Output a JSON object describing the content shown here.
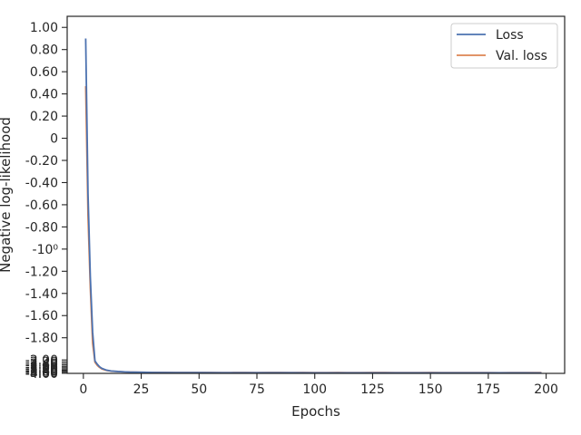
{
  "chart_data": {
    "type": "line",
    "xlabel": "Epochs",
    "ylabel": "Negative log-likelihood",
    "xlim": [
      -7,
      208
    ],
    "x_ticks": [
      0,
      25,
      50,
      75,
      100,
      125,
      150,
      175,
      200
    ],
    "y_scale": "symlog",
    "ylim": [
      -4.02,
      1.1
    ],
    "y_ticks": [
      {
        "value": 1.0,
        "label": "1.00"
      },
      {
        "value": 0.8,
        "label": "0.80"
      },
      {
        "value": 0.6,
        "label": "0.60"
      },
      {
        "value": 0.4,
        "label": "0.40"
      },
      {
        "value": 0.2,
        "label": "0.20"
      },
      {
        "value": 0.0,
        "label": "0"
      },
      {
        "value": -0.2,
        "label": "-0.20"
      },
      {
        "value": -0.4,
        "label": "-0.40"
      },
      {
        "value": -0.6,
        "label": "-0.60"
      },
      {
        "value": -0.8,
        "label": "-0.80"
      },
      {
        "value": -1.0,
        "label": "-10⁰"
      },
      {
        "value": -1.2,
        "label": "-1.20"
      },
      {
        "value": -1.4,
        "label": "-1.40"
      },
      {
        "value": -1.6,
        "label": "-1.60"
      },
      {
        "value": -1.8,
        "label": "-1.80"
      },
      {
        "value": -2.0,
        "label": "-2.00"
      },
      {
        "value": -2.2,
        "label": "-2.20"
      },
      {
        "value": -2.4,
        "label": "-2.40"
      },
      {
        "value": -2.6,
        "label": "-2.60"
      },
      {
        "value": -2.8,
        "label": "-2.80"
      },
      {
        "value": -3.0,
        "label": "-3.00"
      },
      {
        "value": -3.2,
        "label": "-3.20"
      },
      {
        "value": -3.4,
        "label": "-3.40"
      },
      {
        "value": -3.6,
        "label": "-3.60"
      },
      {
        "value": -3.8,
        "label": "-3.80"
      },
      {
        "value": -4.0,
        "label": "-4.00"
      }
    ],
    "grid": false,
    "legend_position": "top-right",
    "series": [
      {
        "name": "Loss",
        "color": "#4c72b0",
        "x": [
          1,
          2,
          3,
          4,
          5,
          6,
          7,
          8,
          10,
          12,
          15,
          18,
          20,
          25,
          30,
          40,
          50,
          60,
          70,
          80,
          90,
          100,
          110,
          120,
          130,
          140,
          150,
          160,
          170,
          180,
          190,
          198
        ],
        "values": [
          0.9,
          -0.5,
          -1.25,
          -1.75,
          -2.1,
          -2.5,
          -2.85,
          -3.1,
          -3.4,
          -3.55,
          -3.65,
          -3.72,
          -3.76,
          -3.8,
          -3.83,
          -3.86,
          -3.87,
          -3.88,
          -3.88,
          -3.89,
          -3.89,
          -3.9,
          -3.9,
          -3.9,
          -3.91,
          -3.91,
          -3.91,
          -3.92,
          -3.92,
          -3.92,
          -3.92,
          -3.93
        ]
      },
      {
        "name": "Val. loss",
        "color": "#dd8452",
        "x": [
          1,
          2,
          3,
          4,
          5,
          6,
          7,
          8,
          10,
          12,
          15,
          18,
          20,
          25,
          30,
          35,
          40,
          45,
          50,
          55,
          60,
          65,
          70,
          75,
          80,
          85,
          90,
          95,
          100,
          105,
          110,
          115,
          120,
          125,
          130,
          135,
          140,
          145,
          150,
          155,
          160,
          165,
          170,
          175,
          180,
          185,
          190,
          195,
          198
        ],
        "values": [
          0.47,
          -0.7,
          -1.35,
          -1.85,
          -2.25,
          -2.65,
          -2.95,
          -3.2,
          -3.45,
          -3.58,
          -3.66,
          -3.73,
          -3.76,
          -3.79,
          -3.82,
          -3.81,
          -3.84,
          -3.83,
          -3.85,
          -3.84,
          -3.86,
          -3.85,
          -3.84,
          -3.86,
          -3.85,
          -3.84,
          -3.86,
          -3.85,
          -3.86,
          -3.87,
          -3.85,
          -3.86,
          -3.87,
          -3.85,
          -3.84,
          -3.86,
          -3.87,
          -3.86,
          -3.85,
          -3.87,
          -3.86,
          -3.87,
          -3.86,
          -3.87,
          -3.88,
          -3.86,
          -3.87,
          -3.86,
          -3.87
        ]
      }
    ]
  }
}
